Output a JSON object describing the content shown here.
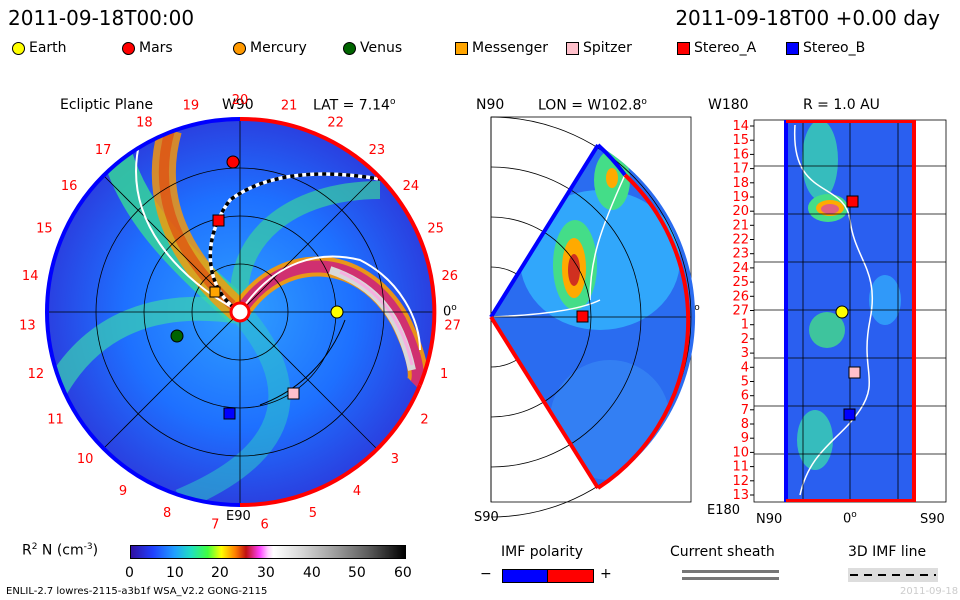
{
  "header": {
    "timestamp_left": "2011-09-18T00:00",
    "timestamp_right": "2011-09-18T00 +0.00 day"
  },
  "legend": {
    "items": [
      {
        "label": "Earth",
        "shape": "circle",
        "color": "#ffff00"
      },
      {
        "label": "Mars",
        "shape": "circle",
        "color": "#ff0000"
      },
      {
        "label": "Mercury",
        "shape": "circle",
        "color": "#ff9900"
      },
      {
        "label": "Venus",
        "shape": "circle",
        "color": "#006400"
      },
      {
        "label": "Messenger",
        "shape": "square",
        "color": "#ffa500"
      },
      {
        "label": "Spitzer",
        "shape": "square",
        "color": "#ffc0cb"
      },
      {
        "label": "Stereo_A",
        "shape": "square",
        "color": "#ff0000"
      },
      {
        "label": "Stereo_B",
        "shape": "square",
        "color": "#0000ff"
      }
    ]
  },
  "ecliptic": {
    "title": "Ecliptic Plane",
    "top_label": "W90",
    "lat_label": "LAT = 7.14",
    "lat_sup": "o",
    "bottom_label": "E90",
    "right_label": "0",
    "right_sup": "o",
    "rim_numbers": [
      "20",
      "21",
      "22",
      "23",
      "24",
      "25",
      "26",
      "27",
      "1",
      "2",
      "3",
      "4",
      "5",
      "6",
      "7",
      "8",
      "9",
      "10",
      "11",
      "12",
      "13",
      "14",
      "15",
      "16",
      "17",
      "18",
      "19"
    ]
  },
  "meridional": {
    "top_label": "N90",
    "lon_label": "LON = W102.8",
    "lon_sup": "o",
    "bottom_label": "S90",
    "right_label": "0",
    "right_sup": "o"
  },
  "radial": {
    "title": "R = 1.0 AU",
    "top_left": "W180",
    "bottom_left": "E180",
    "x_left": "N90",
    "x_mid": "0",
    "x_mid_sup": "o",
    "x_right": "S90",
    "y_ticks": [
      "14",
      "15",
      "16",
      "17",
      "18",
      "19",
      "20",
      "21",
      "22",
      "23",
      "24",
      "25",
      "26",
      "27",
      "1",
      "2",
      "3",
      "4",
      "5",
      "6",
      "7",
      "8",
      "9",
      "10",
      "11",
      "12",
      "13"
    ]
  },
  "colorbar": {
    "label": "R",
    "label_sup": "2",
    "label_rest": " N (cm",
    "label_unit_sup": "-3",
    "label_close": ")",
    "ticks": [
      "0",
      "10",
      "20",
      "30",
      "40",
      "50",
      "60"
    ]
  },
  "imf": {
    "title": "IMF polarity",
    "minus": "−",
    "plus": "+",
    "neg_color": "#0000ff",
    "pos_color": "#ff0000"
  },
  "current_sheath": {
    "title": "Current sheath"
  },
  "imf_line": {
    "title": "3D IMF line"
  },
  "footer": {
    "left": "ENLIL-2.7 lowres-2115-a3b1f WSA_V2.2 GONG-2115",
    "right": "2011-09-18"
  }
}
